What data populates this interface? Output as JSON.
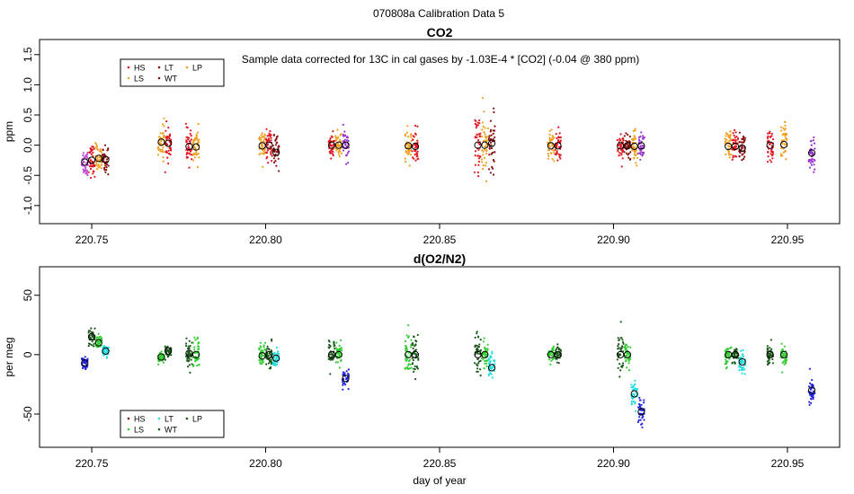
{
  "figure_title": "070808a   Calibration Data 5",
  "colors": {
    "HS": "#e0161e",
    "LS": "#c04ad8",
    "LT": "#f0a020",
    "WT": "#8a1010",
    "LP": "#f0a020",
    "HS2": "#8a1010",
    "LS2": "#33cc33",
    "LT2": "#22dddd",
    "WT2": "#1a5a1a",
    "LP2": "#2222dd"
  },
  "chart_data": [
    {
      "type": "scatter",
      "title": "CO2",
      "annotation": "Sample data corrected for 13C in cal gases by -1.03E-4 * [CO2] (-0.04 @ 380 ppm)",
      "xlabel": "",
      "ylabel": "ppm",
      "xlim": [
        220.735,
        220.965
      ],
      "ylim": [
        -1.3,
        1.75
      ],
      "xticks": [
        220.75,
        220.8,
        220.85,
        220.9,
        220.95
      ],
      "xtick_labels": [
        "220.75",
        "220.80",
        "220.85",
        "220.90",
        "220.95"
      ],
      "yticks": [
        -1.0,
        -0.5,
        0.0,
        0.5,
        1.0,
        1.5
      ],
      "ytick_labels": [
        "-1.0",
        "-0.5",
        "0.0",
        "0.5",
        "1.0",
        "1.5"
      ],
      "legend": {
        "position": "top-left",
        "entries": [
          {
            "label": "HS",
            "color": "#e0161e"
          },
          {
            "label": "LT",
            "color": "#8a1010"
          },
          {
            "label": "LP",
            "color": "#f0a020"
          },
          {
            "label": "LS",
            "color": "#f0a020"
          },
          {
            "label": "WT",
            "color": "#8a1010"
          }
        ]
      },
      "groups": [
        {
          "x": 220.748,
          "mean": -0.28,
          "spread": 0.22,
          "color": "#c04ad8"
        },
        {
          "x": 220.75,
          "mean": -0.25,
          "spread": 0.22,
          "color": "#e0161e"
        },
        {
          "x": 220.752,
          "mean": -0.22,
          "spread": 0.22,
          "color": "#f0a020"
        },
        {
          "x": 220.754,
          "mean": -0.24,
          "spread": 0.2,
          "color": "#8a1010"
        },
        {
          "x": 220.77,
          "mean": 0.05,
          "spread": 0.25,
          "color": "#f0a020"
        },
        {
          "x": 220.772,
          "mean": 0.03,
          "spread": 0.25,
          "color": "#e0161e"
        },
        {
          "x": 220.778,
          "mean": -0.02,
          "spread": 0.25,
          "color": "#e0161e"
        },
        {
          "x": 220.78,
          "mean": -0.03,
          "spread": 0.25,
          "color": "#f0a020"
        },
        {
          "x": 220.799,
          "mean": -0.01,
          "spread": 0.22,
          "color": "#f0a020"
        },
        {
          "x": 220.801,
          "mean": 0.0,
          "spread": 0.22,
          "color": "#e0161e"
        },
        {
          "x": 220.803,
          "mean": -0.12,
          "spread": 0.22,
          "color": "#8a1010"
        },
        {
          "x": 220.819,
          "mean": 0.0,
          "spread": 0.22,
          "color": "#e0161e"
        },
        {
          "x": 220.821,
          "mean": 0.0,
          "spread": 0.22,
          "color": "#f0a020"
        },
        {
          "x": 220.823,
          "mean": 0.0,
          "spread": 0.2,
          "color": "#9933cc"
        },
        {
          "x": 220.841,
          "mean": -0.01,
          "spread": 0.25,
          "color": "#f0a020"
        },
        {
          "x": 220.843,
          "mean": -0.02,
          "spread": 0.25,
          "color": "#e0161e"
        },
        {
          "x": 220.861,
          "mean": 0.0,
          "spread": 0.45,
          "color": "#e0161e"
        },
        {
          "x": 220.863,
          "mean": 0.0,
          "spread": 0.45,
          "color": "#f0a020"
        },
        {
          "x": 220.865,
          "mean": 0.03,
          "spread": 0.45,
          "color": "#8a1010"
        },
        {
          "x": 220.882,
          "mean": -0.01,
          "spread": 0.22,
          "color": "#f0a020"
        },
        {
          "x": 220.884,
          "mean": -0.01,
          "spread": 0.22,
          "color": "#e0161e"
        },
        {
          "x": 220.902,
          "mean": -0.01,
          "spread": 0.22,
          "color": "#e0161e"
        },
        {
          "x": 220.904,
          "mean": -0.01,
          "spread": 0.2,
          "color": "#8a1010"
        },
        {
          "x": 220.906,
          "mean": -0.02,
          "spread": 0.22,
          "color": "#f0a020"
        },
        {
          "x": 220.908,
          "mean": -0.01,
          "spread": 0.22,
          "color": "#9933cc"
        },
        {
          "x": 220.933,
          "mean": -0.02,
          "spread": 0.25,
          "color": "#f0a020"
        },
        {
          "x": 220.935,
          "mean": -0.02,
          "spread": 0.22,
          "color": "#e0161e"
        },
        {
          "x": 220.937,
          "mean": -0.05,
          "spread": 0.22,
          "color": "#8a1010"
        },
        {
          "x": 220.945,
          "mean": 0.0,
          "spread": 0.25,
          "color": "#e0161e"
        },
        {
          "x": 220.949,
          "mean": 0.01,
          "spread": 0.3,
          "color": "#f0a020"
        },
        {
          "x": 220.957,
          "mean": -0.13,
          "spread": 0.22,
          "color": "#9933cc"
        }
      ]
    },
    {
      "type": "scatter",
      "title": "d(O2/N2)",
      "xlabel": "day of year",
      "ylabel": "per meg",
      "xlim": [
        220.735,
        220.965
      ],
      "ylim": [
        -78,
        74
      ],
      "xticks": [
        220.75,
        220.8,
        220.85,
        220.9,
        220.95
      ],
      "xtick_labels": [
        "220.75",
        "220.80",
        "220.85",
        "220.90",
        "220.95"
      ],
      "yticks": [
        -50,
        0,
        50
      ],
      "ytick_labels": [
        "-50",
        "0",
        "50"
      ],
      "legend": {
        "position": "bottom-left",
        "entries": [
          {
            "label": "HS",
            "color": "#8a1010"
          },
          {
            "label": "LT",
            "color": "#22dddd"
          },
          {
            "label": "LP",
            "color": "#1a5a1a"
          },
          {
            "label": "LS",
            "color": "#33cc33"
          },
          {
            "label": "WT",
            "color": "#1a5a1a"
          }
        ]
      },
      "groups": [
        {
          "x": 220.748,
          "mean": -7,
          "spread": 5,
          "color": "#2222dd"
        },
        {
          "x": 220.75,
          "mean": 15,
          "spread": 6,
          "color": "#1a5a1a"
        },
        {
          "x": 220.752,
          "mean": 10,
          "spread": 6,
          "color": "#33cc33"
        },
        {
          "x": 220.754,
          "mean": 3,
          "spread": 4,
          "color": "#22dddd"
        },
        {
          "x": 220.77,
          "mean": -2,
          "spread": 4,
          "color": "#33cc33"
        },
        {
          "x": 220.772,
          "mean": 3,
          "spread": 4,
          "color": "#1a5a1a"
        },
        {
          "x": 220.778,
          "mean": 1,
          "spread": 10,
          "color": "#1a5a1a"
        },
        {
          "x": 220.78,
          "mean": 0,
          "spread": 14,
          "color": "#33cc33"
        },
        {
          "x": 220.799,
          "mean": -1,
          "spread": 10,
          "color": "#33cc33"
        },
        {
          "x": 220.801,
          "mean": 0,
          "spread": 9,
          "color": "#1a5a1a"
        },
        {
          "x": 220.803,
          "mean": -3,
          "spread": 6,
          "color": "#22dddd"
        },
        {
          "x": 220.819,
          "mean": 0,
          "spread": 12,
          "color": "#1a5a1a"
        },
        {
          "x": 220.821,
          "mean": 0,
          "spread": 10,
          "color": "#33cc33"
        },
        {
          "x": 220.823,
          "mean": -20,
          "spread": 7,
          "color": "#2222dd"
        },
        {
          "x": 220.841,
          "mean": 0,
          "spread": 18,
          "color": "#33cc33"
        },
        {
          "x": 220.843,
          "mean": 0,
          "spread": 18,
          "color": "#1a5a1a"
        },
        {
          "x": 220.861,
          "mean": 0,
          "spread": 18,
          "color": "#1a5a1a"
        },
        {
          "x": 220.863,
          "mean": 0,
          "spread": 12,
          "color": "#33cc33"
        },
        {
          "x": 220.865,
          "mean": -11,
          "spread": 10,
          "color": "#22dddd"
        },
        {
          "x": 220.882,
          "mean": 0,
          "spread": 5,
          "color": "#33cc33"
        },
        {
          "x": 220.884,
          "mean": 0,
          "spread": 6,
          "color": "#1a5a1a"
        },
        {
          "x": 220.902,
          "mean": 0,
          "spread": 16,
          "color": "#1a5a1a"
        },
        {
          "x": 220.904,
          "mean": 0,
          "spread": 14,
          "color": "#33cc33"
        },
        {
          "x": 220.906,
          "mean": -33,
          "spread": 8,
          "color": "#22dddd"
        },
        {
          "x": 220.908,
          "mean": -48,
          "spread": 10,
          "color": "#2222dd"
        },
        {
          "x": 220.933,
          "mean": 0,
          "spread": 8,
          "color": "#33cc33"
        },
        {
          "x": 220.935,
          "mean": 0,
          "spread": 7,
          "color": "#1a5a1a"
        },
        {
          "x": 220.937,
          "mean": -6,
          "spread": 7,
          "color": "#22dddd"
        },
        {
          "x": 220.945,
          "mean": 0,
          "spread": 8,
          "color": "#1a5a1a"
        },
        {
          "x": 220.949,
          "mean": 0,
          "spread": 8,
          "color": "#33cc33"
        },
        {
          "x": 220.957,
          "mean": -30,
          "spread": 12,
          "color": "#2222dd"
        }
      ]
    }
  ]
}
